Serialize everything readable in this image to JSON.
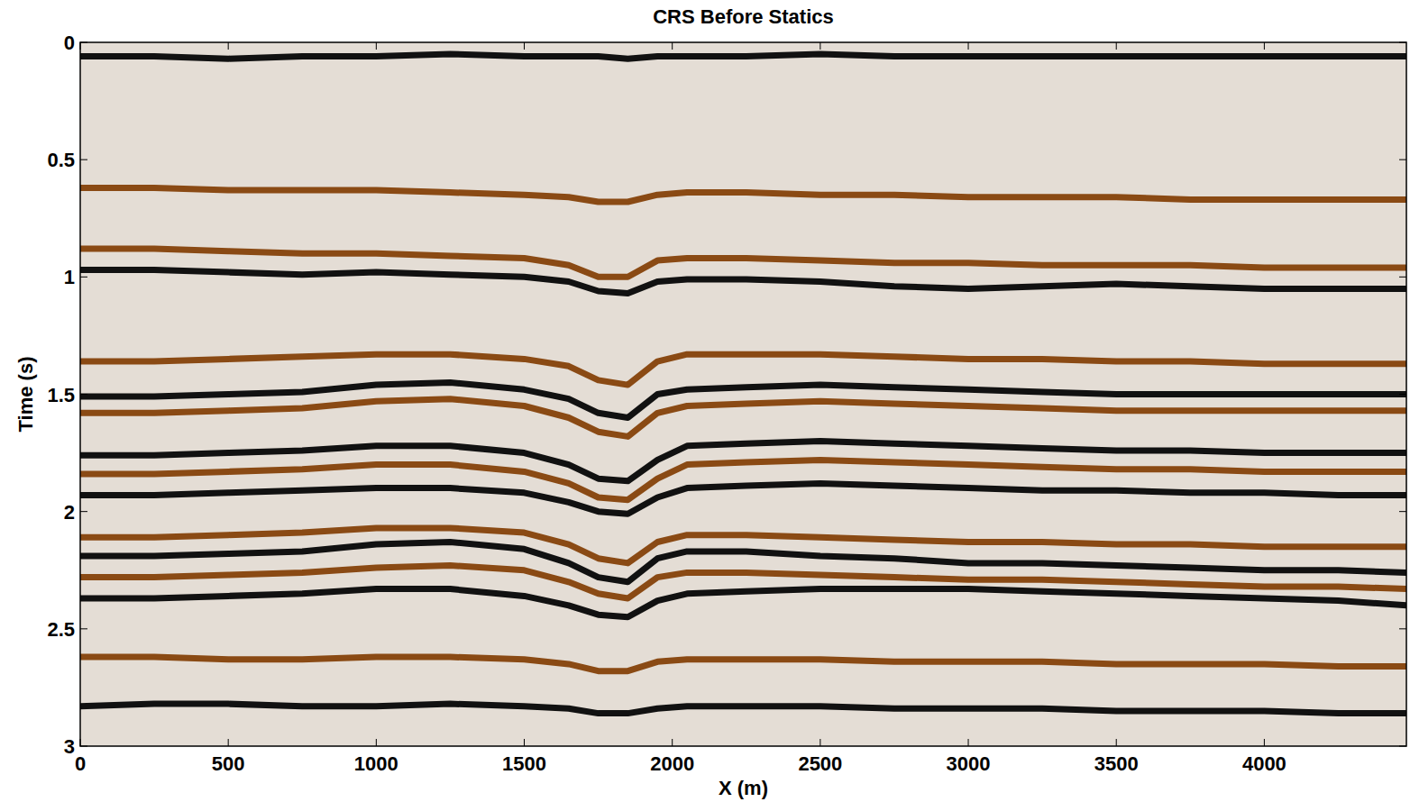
{
  "chart_data": {
    "type": "line",
    "title": "CRS Before Statics",
    "x_label": "X (m)",
    "y_label": "Time (s)",
    "x": [
      0,
      250,
      500,
      750,
      1000,
      1250,
      1500,
      1650,
      1750,
      1850,
      1950,
      2050,
      2250,
      2500,
      2750,
      3000,
      3250,
      3500,
      3750,
      4000,
      4250,
      4480
    ],
    "xlim": [
      0,
      4480
    ],
    "xticks": [
      0,
      500,
      1000,
      1500,
      2000,
      2500,
      3000,
      3500,
      4000
    ],
    "ylim": [
      0,
      3
    ],
    "yticks": [
      0,
      0.5,
      1,
      1.5,
      2,
      2.5,
      3
    ],
    "grid": false,
    "series": [
      {
        "color": "#111111",
        "values": [
          0.06,
          0.06,
          0.07,
          0.06,
          0.06,
          0.05,
          0.06,
          0.06,
          0.06,
          0.07,
          0.06,
          0.06,
          0.06,
          0.05,
          0.06,
          0.06,
          0.06,
          0.06,
          0.06,
          0.06,
          0.06,
          0.06
        ]
      },
      {
        "color": "#8a4a14",
        "values": [
          0.62,
          0.62,
          0.63,
          0.63,
          0.63,
          0.64,
          0.65,
          0.66,
          0.68,
          0.68,
          0.65,
          0.64,
          0.64,
          0.65,
          0.65,
          0.66,
          0.66,
          0.66,
          0.67,
          0.67,
          0.67,
          0.67
        ]
      },
      {
        "color": "#8a4a14",
        "values": [
          0.88,
          0.88,
          0.89,
          0.9,
          0.9,
          0.91,
          0.92,
          0.95,
          1.0,
          1.0,
          0.93,
          0.92,
          0.92,
          0.93,
          0.94,
          0.94,
          0.95,
          0.95,
          0.95,
          0.96,
          0.96,
          0.96
        ]
      },
      {
        "color": "#111111",
        "values": [
          0.97,
          0.97,
          0.98,
          0.99,
          0.98,
          0.99,
          1.0,
          1.02,
          1.06,
          1.07,
          1.02,
          1.01,
          1.01,
          1.02,
          1.04,
          1.05,
          1.04,
          1.03,
          1.04,
          1.05,
          1.05,
          1.05
        ]
      },
      {
        "color": "#8a4a14",
        "values": [
          1.36,
          1.36,
          1.35,
          1.34,
          1.33,
          1.33,
          1.35,
          1.38,
          1.44,
          1.46,
          1.36,
          1.33,
          1.33,
          1.33,
          1.34,
          1.35,
          1.35,
          1.36,
          1.36,
          1.37,
          1.37,
          1.37
        ]
      },
      {
        "color": "#111111",
        "values": [
          1.51,
          1.51,
          1.5,
          1.49,
          1.46,
          1.45,
          1.48,
          1.52,
          1.58,
          1.6,
          1.5,
          1.48,
          1.47,
          1.46,
          1.47,
          1.48,
          1.49,
          1.5,
          1.5,
          1.5,
          1.5,
          1.5
        ]
      },
      {
        "color": "#8a4a14",
        "values": [
          1.58,
          1.58,
          1.57,
          1.56,
          1.53,
          1.52,
          1.55,
          1.6,
          1.66,
          1.68,
          1.58,
          1.55,
          1.54,
          1.53,
          1.54,
          1.55,
          1.56,
          1.57,
          1.57,
          1.57,
          1.57,
          1.57
        ]
      },
      {
        "color": "#111111",
        "values": [
          1.76,
          1.76,
          1.75,
          1.74,
          1.72,
          1.72,
          1.75,
          1.8,
          1.86,
          1.87,
          1.78,
          1.72,
          1.71,
          1.7,
          1.71,
          1.72,
          1.73,
          1.74,
          1.74,
          1.75,
          1.75,
          1.75
        ]
      },
      {
        "color": "#8a4a14",
        "values": [
          1.84,
          1.84,
          1.83,
          1.82,
          1.8,
          1.8,
          1.83,
          1.88,
          1.94,
          1.95,
          1.86,
          1.8,
          1.79,
          1.78,
          1.79,
          1.8,
          1.81,
          1.82,
          1.82,
          1.83,
          1.83,
          1.83
        ]
      },
      {
        "color": "#111111",
        "values": [
          1.93,
          1.93,
          1.92,
          1.91,
          1.9,
          1.9,
          1.92,
          1.96,
          2.0,
          2.01,
          1.94,
          1.9,
          1.89,
          1.88,
          1.89,
          1.9,
          1.91,
          1.91,
          1.92,
          1.92,
          1.93,
          1.93
        ]
      },
      {
        "color": "#8a4a14",
        "values": [
          2.11,
          2.11,
          2.1,
          2.09,
          2.07,
          2.07,
          2.09,
          2.14,
          2.2,
          2.22,
          2.13,
          2.1,
          2.1,
          2.11,
          2.12,
          2.13,
          2.13,
          2.14,
          2.14,
          2.15,
          2.15,
          2.15
        ]
      },
      {
        "color": "#111111",
        "values": [
          2.19,
          2.19,
          2.18,
          2.17,
          2.14,
          2.13,
          2.16,
          2.22,
          2.28,
          2.3,
          2.2,
          2.17,
          2.17,
          2.19,
          2.2,
          2.22,
          2.22,
          2.23,
          2.24,
          2.25,
          2.25,
          2.26
        ]
      },
      {
        "color": "#8a4a14",
        "values": [
          2.28,
          2.28,
          2.27,
          2.26,
          2.24,
          2.23,
          2.25,
          2.3,
          2.35,
          2.37,
          2.28,
          2.26,
          2.26,
          2.27,
          2.28,
          2.29,
          2.29,
          2.3,
          2.31,
          2.32,
          2.32,
          2.33
        ]
      },
      {
        "color": "#111111",
        "values": [
          2.37,
          2.37,
          2.36,
          2.35,
          2.33,
          2.33,
          2.36,
          2.4,
          2.44,
          2.45,
          2.38,
          2.35,
          2.34,
          2.33,
          2.33,
          2.33,
          2.34,
          2.35,
          2.36,
          2.37,
          2.38,
          2.4
        ]
      },
      {
        "color": "#8a4a14",
        "values": [
          2.62,
          2.62,
          2.63,
          2.63,
          2.62,
          2.62,
          2.63,
          2.65,
          2.68,
          2.68,
          2.64,
          2.63,
          2.63,
          2.63,
          2.64,
          2.64,
          2.64,
          2.65,
          2.65,
          2.65,
          2.66,
          2.66
        ]
      },
      {
        "color": "#111111",
        "values": [
          2.83,
          2.82,
          2.82,
          2.83,
          2.83,
          2.82,
          2.83,
          2.84,
          2.86,
          2.86,
          2.84,
          2.83,
          2.83,
          2.83,
          2.84,
          2.84,
          2.84,
          2.85,
          2.85,
          2.85,
          2.86,
          2.86
        ]
      }
    ]
  }
}
